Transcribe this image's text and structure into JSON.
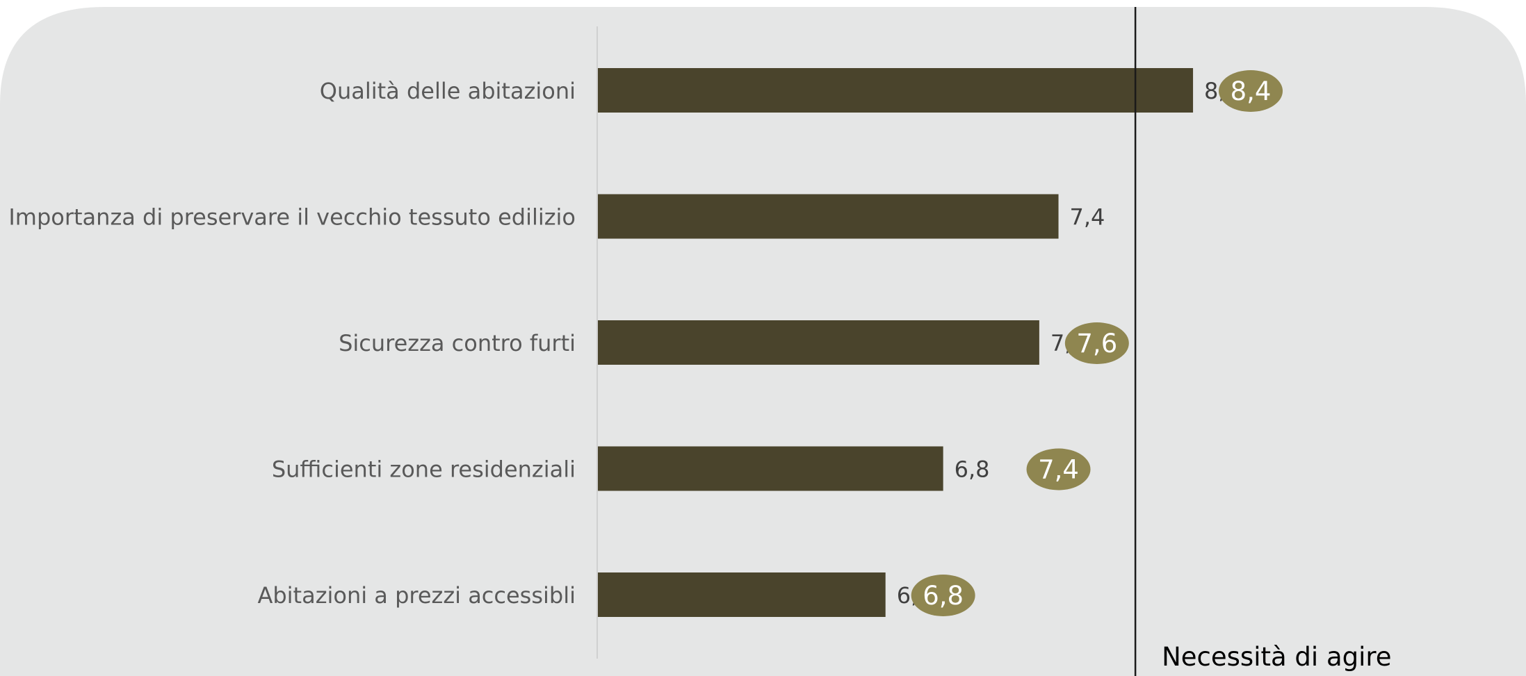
{
  "colors": {
    "panel": "#e5e6e6",
    "bar": "#4a442c",
    "bubble": "#8f8650",
    "label": "#595959",
    "value": "#404040",
    "bubble_text": "#ffffff",
    "axis": "#d0d0d0",
    "reference_line": "#1a1a1a",
    "reference_text": "#000000"
  },
  "chart_data": {
    "type": "bar",
    "orientation": "horizontal",
    "categories": [
      "Qualità delle abitazioni",
      "Importanza di preservare il vecchio tessuto edilizio",
      "Sicurezza contro furti",
      "Sufficienti zone residenziali",
      "Abitazioni a prezzi accessibli"
    ],
    "values": [
      8.1,
      7.4,
      7.3,
      6.8,
      6.5
    ],
    "value_labels": [
      "8,1",
      "7,4",
      "7,3",
      "6,8",
      "6,5"
    ],
    "comparison_values": [
      8.4,
      null,
      7.6,
      7.4,
      6.8
    ],
    "comparison_labels": [
      "8,4",
      "",
      "7,6",
      "7,4",
      "6,8"
    ],
    "reference_value": 7.8,
    "reference_label": "Necessità di agire",
    "xlim": [
      5,
      8.4
    ],
    "grid": false,
    "legend": "none"
  }
}
